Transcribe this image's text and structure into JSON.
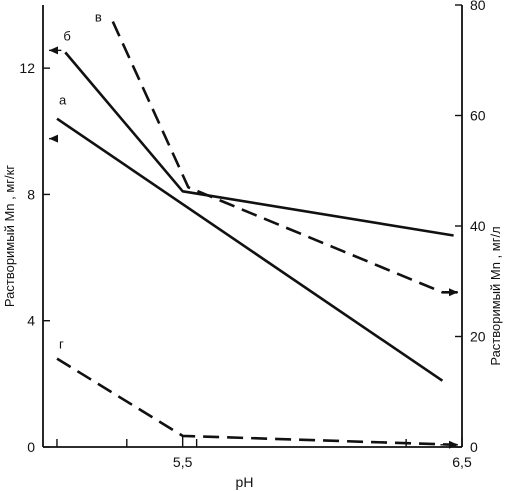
{
  "chart_data": {
    "type": "line",
    "xlabel": "pH",
    "ylabel_left": "Растворимый  Mn , мг/кг",
    "ylabel_right": "Растворимый Mn , мг/л",
    "xlim": [
      5.0,
      6.5
    ],
    "ylim_left": [
      0,
      14
    ],
    "ylim_right": [
      0,
      80
    ],
    "x_ticks": [
      {
        "value": 5.5,
        "label": "5,5"
      },
      {
        "value": 6.5,
        "label": "6,5"
      }
    ],
    "x_minor_ticks": [
      5.05,
      5.3,
      5.55,
      6.3
    ],
    "y_left_ticks": [
      {
        "value": 0,
        "label": "0"
      },
      {
        "value": 4,
        "label": "4"
      },
      {
        "value": 8,
        "label": "8"
      },
      {
        "value": 12,
        "label": "12"
      }
    ],
    "y_right_ticks": [
      {
        "value": 0,
        "label": "0"
      },
      {
        "value": 20,
        "label": "20"
      },
      {
        "value": 40,
        "label": "40"
      },
      {
        "value": 60,
        "label": "60"
      },
      {
        "value": 80,
        "label": "80"
      }
    ],
    "series": [
      {
        "name": "а",
        "axis": "left",
        "style": "solid",
        "x": [
          5.05,
          6.43
        ],
        "y": [
          10.4,
          2.1
        ]
      },
      {
        "name": "б",
        "axis": "left",
        "style": "solid",
        "x": [
          5.08,
          5.5,
          6.47
        ],
        "y": [
          12.5,
          8.1,
          6.7
        ]
      },
      {
        "name": "в",
        "axis": "right",
        "style": "dashed",
        "x": [
          5.25,
          5.52,
          6.43,
          6.5
        ],
        "y": [
          77,
          47,
          28,
          28
        ]
      },
      {
        "name": "г",
        "axis": "right",
        "style": "dashed",
        "x": [
          5.05,
          5.5,
          6.48
        ],
        "y": [
          16,
          2,
          0.4
        ]
      }
    ],
    "axis_arrows": [
      {
        "series": "б",
        "direction": "left",
        "axis": "left"
      },
      {
        "series": "а",
        "direction": "left",
        "axis": "left"
      },
      {
        "series": "в",
        "direction": "right",
        "axis": "right"
      },
      {
        "series": "г",
        "direction": "right",
        "axis": "right"
      }
    ]
  }
}
